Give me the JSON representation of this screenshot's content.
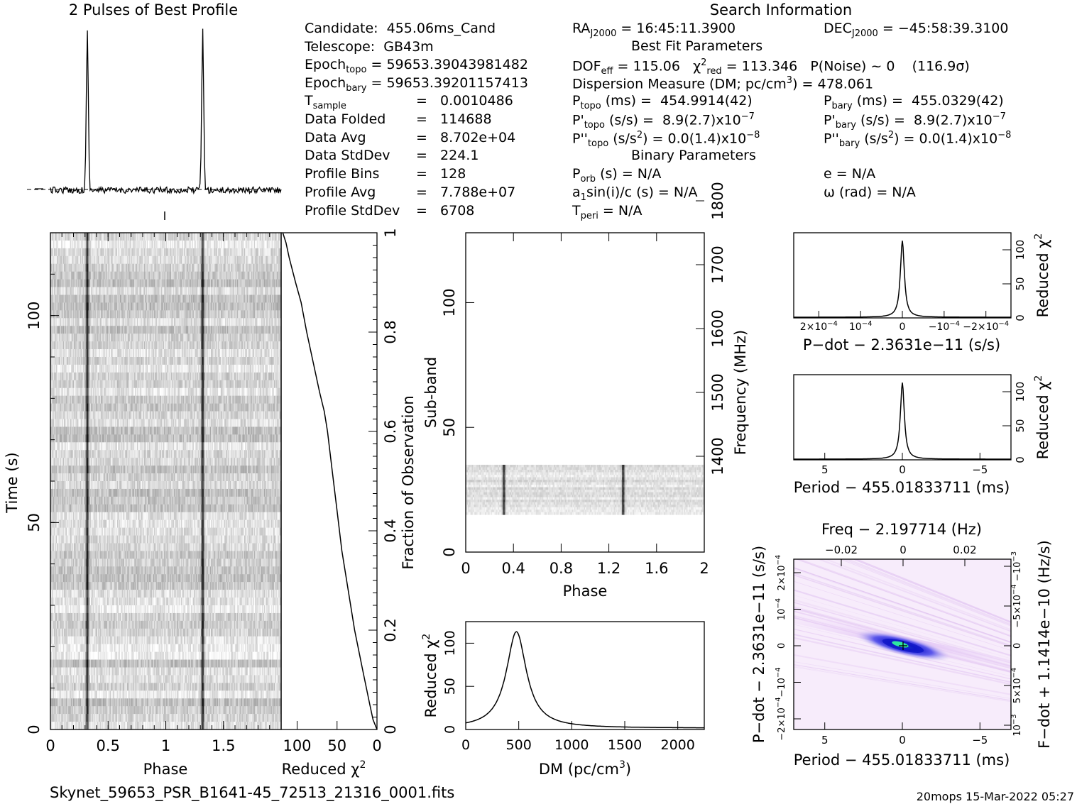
{
  "page": {
    "profile_title": "2 Pulses of Best Profile",
    "search_title": "Search Information",
    "fits_filename": "Skynet_59653_PSR_B1641-45_72513_21316_0001.fits",
    "footer_stamp": "20mops 15-Mar-2022 05:27"
  },
  "info_left": [
    {
      "key": "Candidate:  455.06ms_Cand",
      "val": ""
    },
    {
      "key": "Telescope:  GB43m",
      "val": ""
    },
    {
      "key": "Epoch",
      "sub": "topo",
      "val": " = 59653.39043981482"
    },
    {
      "key": "Epoch",
      "sub": "bary",
      "val": " = 59653.39201157413"
    },
    {
      "key": "T",
      "sub": "sample",
      "val": "=   0.0010486"
    },
    {
      "key": "Data Folded",
      "val": "=   114688"
    },
    {
      "key": "Data Avg",
      "val": "=   8.702e+04"
    },
    {
      "key": "Data StdDev",
      "val": "=   224.1"
    },
    {
      "key": "Profile Bins",
      "val": "=   128"
    },
    {
      "key": "Profile Avg",
      "val": "=   7.788e+07"
    },
    {
      "key": "Profile StdDev",
      "val": "=   6708"
    }
  ],
  "info_mid": {
    "ra": "RA",
    "ra_sub": "J2000",
    "ra_val": " = 16:45:11.3900",
    "best_fit": "Best Fit Parameters",
    "dof": "DOF",
    "dof_sub": "eff",
    "dof_val": " = 115.06   χ",
    "chi_sub": "red",
    "chi_val": " = 113.346   P(Noise) ~ 0    (116.9σ)",
    "dm": "Dispersion Measure (DM; pc/cm",
    "dm_val": ") = 478.061",
    "ptopo": "P",
    "ptopo_sub": "topo",
    "ptopo_val": " (ms) =  454.9914(42)",
    "pdtopo": "P'",
    "pdtopo_sub": "topo",
    "pdtopo_val": " (s/s) =  8.9(2.7)x10",
    "pdtopo_exp": "−7",
    "pddtopo": "P''",
    "pddtopo_sub": "topo",
    "pddtopo_val": " (s/s",
    "pddtopo_val2": ") = 0.0(1.4)x10",
    "pddtopo_exp": "−8",
    "binary": "Binary Parameters",
    "porb": "P",
    "porb_sub": "orb",
    "porb_val": " (s) = N/A",
    "a1": "a",
    "a1_sub": "1",
    "a1_val": "sin(i)/c (s) = N/A",
    "tperi": "T",
    "tperi_sub": "peri",
    "tperi_val": " = N/A"
  },
  "info_right": {
    "dec": "DEC",
    "dec_sub": "J2000",
    "dec_val": " = −45:58:39.3100",
    "pbary": "P",
    "pbary_sub": "bary",
    "pbary_val": " (ms) =  455.0329(42)",
    "pdbary": "P'",
    "pdbary_sub": "bary",
    "pdbary_val": " (s/s) =  8.9(2.7)x10",
    "pdbary_exp": "−7",
    "pddbary": "P''",
    "pddbary_sub": "bary",
    "pddbary_val": " (s/s",
    "pddbary_val2": ") = 0.0(1.4)x10",
    "pddbary_exp": "−8",
    "ecc": "e = N/A",
    "omega": "ω (rad) = N/A"
  },
  "chart_data": [
    {
      "id": "profile",
      "type": "line",
      "title": "2 Pulses of Best Profile",
      "x_range": [
        0,
        2
      ],
      "peaks_at_phase": [
        0.32,
        1.32
      ],
      "note": "folded pulse profile"
    },
    {
      "id": "time_phase",
      "type": "heatmap",
      "xlabel": "Phase",
      "ylabel": "Time (s)",
      "x_ticks": [
        "0",
        "0.5",
        "1",
        "1.5"
      ],
      "y_ticks": [
        "0",
        "50",
        "100"
      ],
      "xlim": [
        0,
        2
      ],
      "ylim": [
        0,
        120
      ],
      "pulse_phases": [
        0.32,
        1.32
      ]
    },
    {
      "id": "chi_vs_time",
      "type": "line",
      "xlabel": "Reduced χ",
      "xlabel_exp": "2",
      "ylabel": "Fraction of Observation",
      "x_ticks": [
        "100",
        "50",
        "0"
      ],
      "y_ticks": [
        "0",
        "0.2",
        "0.4",
        "0.6",
        "0.8",
        "1"
      ],
      "xlim": [
        120,
        0
      ],
      "ylim": [
        0,
        1
      ],
      "points": [
        [
          0,
          0
        ],
        [
          5,
          0.02
        ],
        [
          9,
          0.05
        ],
        [
          18,
          0.12
        ],
        [
          28,
          0.2
        ],
        [
          36,
          0.28
        ],
        [
          44,
          0.36
        ],
        [
          50,
          0.44
        ],
        [
          56,
          0.52
        ],
        [
          62,
          0.6
        ],
        [
          66,
          0.64
        ],
        [
          72,
          0.68
        ],
        [
          80,
          0.74
        ],
        [
          88,
          0.8
        ],
        [
          95,
          0.86
        ],
        [
          102,
          0.9
        ],
        [
          110,
          0.95
        ],
        [
          114,
          0.98
        ],
        [
          118,
          1
        ]
      ]
    },
    {
      "id": "subband_phase",
      "type": "heatmap",
      "xlabel": "Phase",
      "ylabel": "Sub-band",
      "y2label": "Frequency (MHz)",
      "x_ticks": [
        "0",
        "0.4",
        "0.8",
        "1.2",
        "1.6",
        "2"
      ],
      "y_ticks": [
        "0",
        "50",
        "100"
      ],
      "y2_ticks": [
        "1400",
        "1500",
        "1600",
        "1700",
        "1800"
      ],
      "xlim": [
        0,
        2
      ],
      "ylim": [
        0,
        128
      ],
      "filled_subbands": [
        15,
        35
      ],
      "pulse_phases": [
        0.32,
        1.32
      ]
    },
    {
      "id": "dm_curve",
      "type": "line",
      "xlabel": "DM (pc/cm",
      "xlabel_exp": "3",
      "ylabel": "Reduced χ",
      "ylabel_exp": "2",
      "x_ticks": [
        "0",
        "500",
        "1000",
        "1500",
        "2000"
      ],
      "y_ticks": [
        "0",
        "50",
        "100"
      ],
      "xlim": [
        0,
        2250
      ],
      "ylim": [
        0,
        125
      ],
      "peak_dm": 478.061,
      "peak_value": 113.346,
      "baseline": 1.5
    },
    {
      "id": "pdot_curve",
      "type": "line",
      "xlabel": "P−dot − 2.3631e−11 (s/s)",
      "ylabel": "Reduced χ",
      "ylabel_exp": "2",
      "x_ticks": [
        "2×10",
        "10",
        "0",
        "−10",
        "−2×10"
      ],
      "x_tick_exps": [
        "−4",
        "−4",
        "",
        "−4",
        "−4"
      ],
      "y_ticks": [
        "0",
        "50",
        "100"
      ],
      "xlim": [
        0.00026,
        -0.00026
      ],
      "ylim": [
        0,
        125
      ],
      "peak_value": 113.346
    },
    {
      "id": "period_curve",
      "type": "line",
      "xlabel": "Period − 455.01833711 (ms)",
      "ylabel": "Reduced χ",
      "ylabel_exp": "2",
      "x_ticks": [
        "5",
        "0",
        "−5"
      ],
      "y_ticks": [
        "0",
        "50",
        "100"
      ],
      "xlim": [
        7,
        -7
      ],
      "ylim": [
        0,
        125
      ],
      "peak_value": 113.346
    },
    {
      "id": "p_pdot_plane",
      "type": "heatmap",
      "title": "Freq − 2.197714 (Hz)",
      "xlabel": "Period − 455.01833711 (ms)",
      "ylabel": "P−dot − 2.3631e−11 (s/s)",
      "y2label": "F−dot + 1.1414e−10 (Hz/s)",
      "x_ticks": [
        "5",
        "0",
        "−5"
      ],
      "top_ticks": [
        "−0.02",
        "0",
        "0.02"
      ],
      "y_ticks": [
        "2×10",
        "10",
        "0",
        "−10",
        "−2×10"
      ],
      "y_tick_exps": [
        "−4",
        "−4",
        "",
        "−4",
        "−4"
      ],
      "y2_ticks": [
        "−10",
        "−5×10",
        "0",
        "5×10",
        "10"
      ],
      "y2_tick_exps": [
        "−3",
        "−4",
        "",
        "−4",
        "−3"
      ],
      "xlim": [
        7,
        -7
      ],
      "ylim": [
        0.00026,
        -0.00026
      ]
    }
  ]
}
